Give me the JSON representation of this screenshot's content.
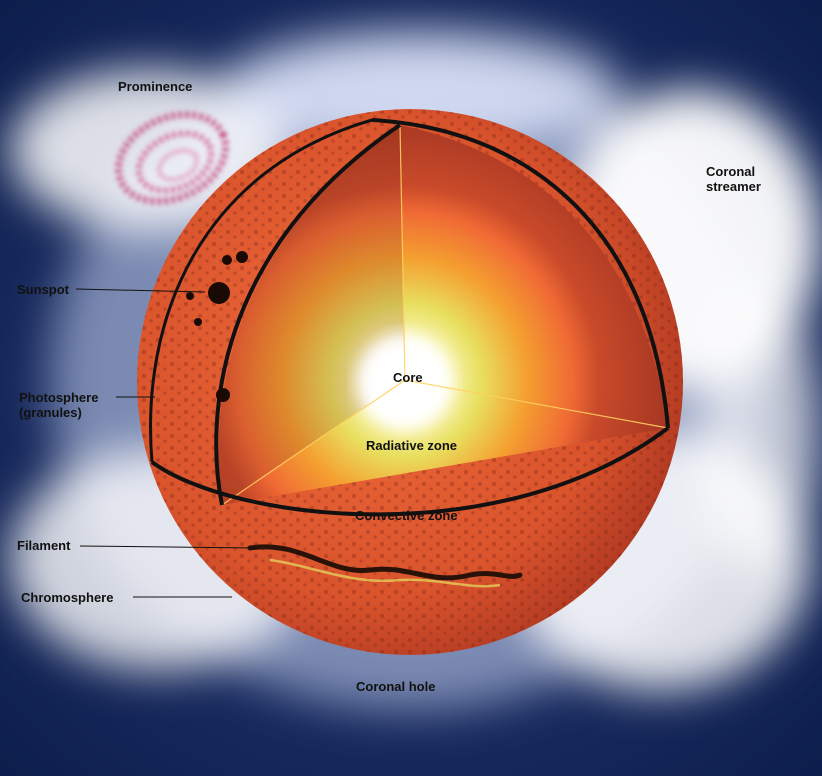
{
  "diagram": {
    "labels": {
      "prominence": "Prominence",
      "coronal_streamer": "Coronal\nstreamer",
      "sunspot": "Sunspot",
      "photosphere": "Photosphere\n(granules)",
      "filament": "Filament",
      "chromosphere": "Chromosphere",
      "core": "Core",
      "radiative_zone": "Radiative zone",
      "convective_zone": "Convective zone",
      "coronal_hole": "Coronal hole"
    },
    "colors": {
      "background": "#0b1c4a",
      "corona": "#f2f6ff",
      "sphere_outer": "#d9532c",
      "convective": "#b8422a",
      "radiative": "#f4a030",
      "core": "#ffffe8",
      "prominence": "#c0306a"
    }
  }
}
